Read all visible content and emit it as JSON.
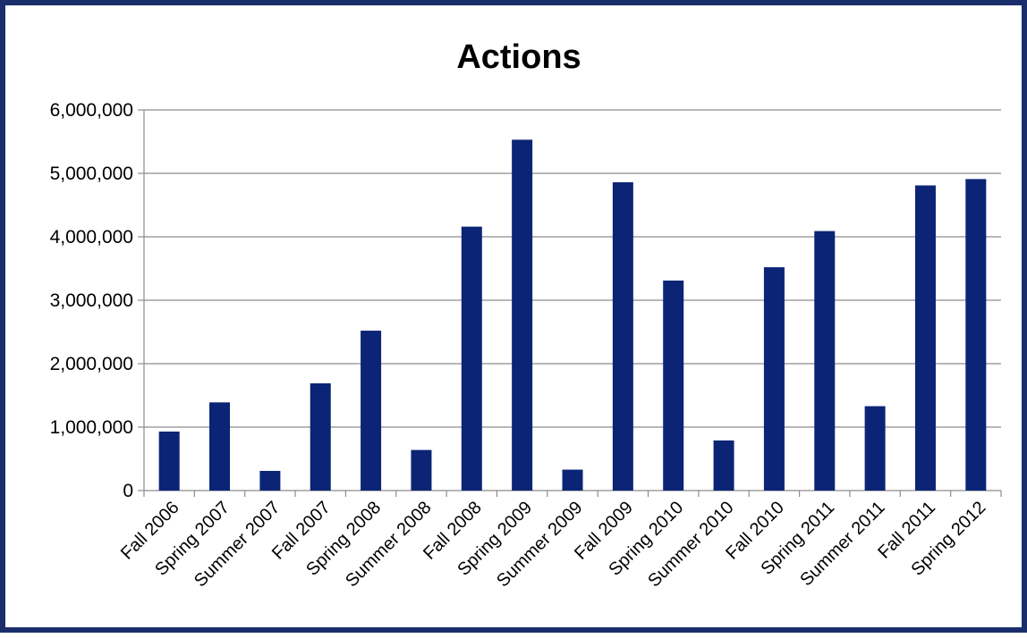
{
  "chart_data": {
    "type": "bar",
    "title": "Actions",
    "xlabel": "",
    "ylabel": "",
    "ylim": [
      0,
      6000000
    ],
    "yticks": [
      0,
      1000000,
      2000000,
      3000000,
      4000000,
      5000000,
      6000000
    ],
    "ytick_labels": [
      "0",
      "1,000,000",
      "2,000,000",
      "3,000,000",
      "4,000,000",
      "5,000,000",
      "6,000,000"
    ],
    "grid": "horizontal",
    "legend": "none",
    "bar_color": "#0b2475",
    "frame_color": "#1a2e6c",
    "categories": [
      "Fall 2006",
      "Spring 2007",
      "Summer 2007",
      "Fall 2007",
      "Spring 2008",
      "Summer 2008",
      "Fall 2008",
      "Spring 2009",
      "Summer 2009",
      "Fall 2009",
      "Spring 2010",
      "Summer 2010",
      "Fall 2010",
      "Spring 2011",
      "Summer 2011",
      "Fall 2011",
      "Spring 2012"
    ],
    "values": [
      930000,
      1390000,
      310000,
      1690000,
      2520000,
      640000,
      4160000,
      5530000,
      330000,
      4860000,
      3310000,
      790000,
      3520000,
      4090000,
      1330000,
      4810000,
      4910000
    ]
  }
}
